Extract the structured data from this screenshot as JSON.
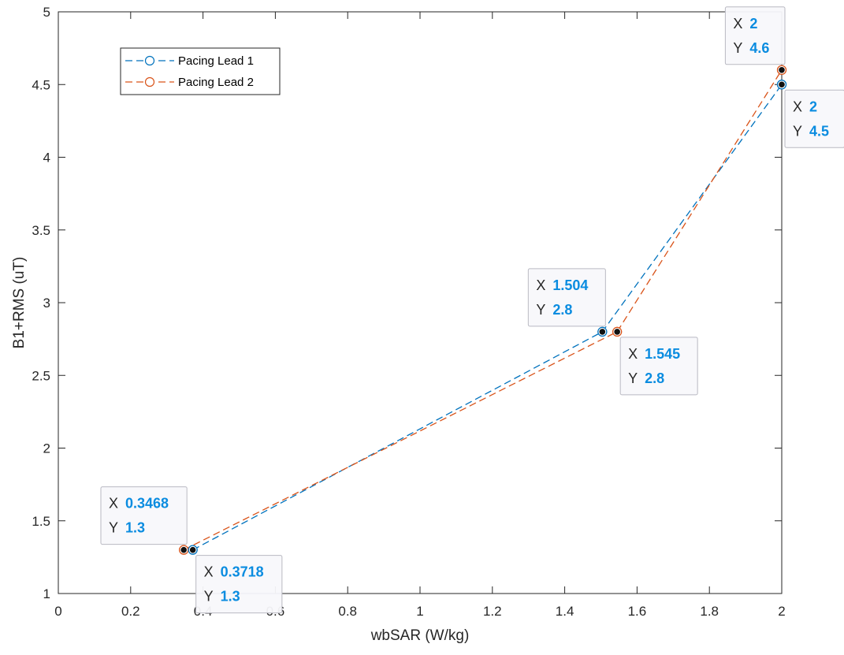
{
  "chart_data": {
    "type": "line",
    "xlabel": "wbSAR (W/kg)",
    "ylabel": "B1+RMS (uT)",
    "xlim": [
      0,
      2
    ],
    "ylim": [
      1,
      5
    ],
    "xticks": [
      "0",
      "0.2",
      "0.4",
      "0.6",
      "0.8",
      "1",
      "1.2",
      "1.4",
      "1.6",
      "1.8",
      "2"
    ],
    "yticks": [
      "1",
      "1.5",
      "2",
      "2.5",
      "3",
      "3.5",
      "4",
      "4.5",
      "5"
    ],
    "grid": false,
    "legend_position": "top-left",
    "series": [
      {
        "name": "Pacing Lead 1",
        "color": "#0072bd",
        "marker": "circle",
        "line_style": "dashed",
        "x": [
          0.3718,
          1.504,
          2
        ],
        "y": [
          1.3,
          2.8,
          4.5
        ]
      },
      {
        "name": "Pacing Lead 2",
        "color": "#d95319",
        "marker": "circle",
        "line_style": "dashed",
        "x": [
          0.3468,
          1.545,
          2
        ],
        "y": [
          1.3,
          2.8,
          4.6
        ]
      }
    ],
    "datatips": [
      {
        "series": 1,
        "x": 0.3468,
        "y": 1.3,
        "x_text": "0.3468",
        "y_text": "1.3",
        "place": "upper-left"
      },
      {
        "series": 0,
        "x": 0.3718,
        "y": 1.3,
        "x_text": "0.3718",
        "y_text": "1.3",
        "place": "lower-right"
      },
      {
        "series": 0,
        "x": 1.504,
        "y": 2.8,
        "x_text": "1.504",
        "y_text": "2.8",
        "place": "upper-left"
      },
      {
        "series": 1,
        "x": 1.545,
        "y": 2.8,
        "x_text": "1.545",
        "y_text": "2.8",
        "place": "lower-right"
      },
      {
        "series": 1,
        "x": 2,
        "y": 4.6,
        "x_text": "2",
        "y_text": "4.6",
        "place": "upper-left"
      },
      {
        "series": 0,
        "x": 2,
        "y": 4.5,
        "x_text": "2",
        "y_text": "4.5",
        "place": "lower-right"
      }
    ],
    "tip_x_key": "X",
    "tip_y_key": "Y"
  }
}
